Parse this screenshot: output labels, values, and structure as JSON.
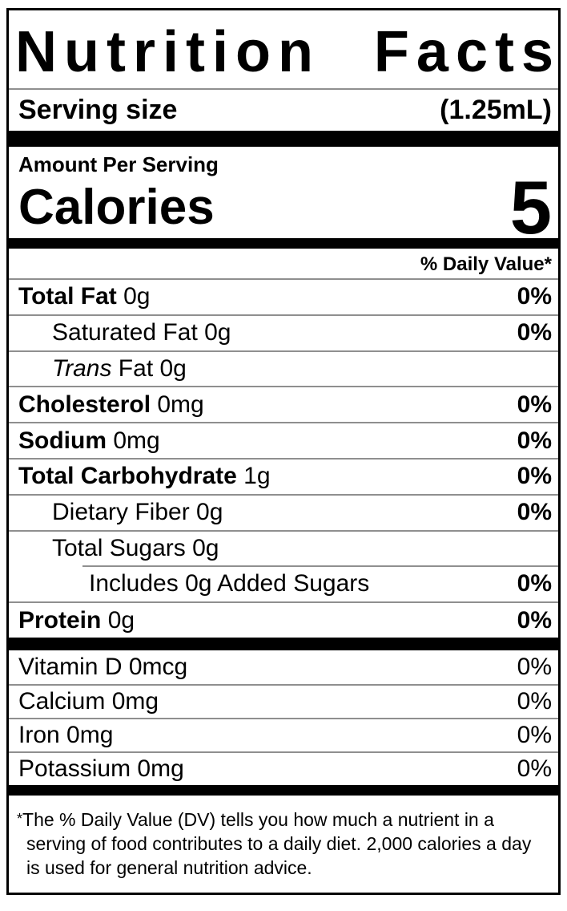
{
  "label": {
    "title": "Nutrition Facts"
  },
  "serving": {
    "label": "Serving size",
    "value": "(1.25mL)"
  },
  "calories": {
    "amount_label": "Amount Per Serving",
    "label": "Calories",
    "value": "5"
  },
  "daily_value_header": "% Daily Value*",
  "nutrients": [
    {
      "bold": "Total Fat",
      "text": " 0g",
      "dv": "0%",
      "indent": 0,
      "rule": "full"
    },
    {
      "text": "Saturated Fat 0g",
      "dv": "0%",
      "indent": 1,
      "rule": "full"
    },
    {
      "italic": "Trans",
      "text": " Fat 0g",
      "dv": "",
      "indent": 1,
      "rule": "full"
    },
    {
      "bold": "Cholesterol",
      "text": " 0mg",
      "dv": "0%",
      "indent": 0,
      "rule": "full"
    },
    {
      "bold": "Sodium",
      "text": " 0mg",
      "dv": "0%",
      "indent": 0,
      "rule": "full"
    },
    {
      "bold": "Total Carbohydrate",
      "text": " 1g",
      "dv": "0%",
      "indent": 0,
      "rule": "full"
    },
    {
      "text": "Dietary Fiber 0g",
      "dv": "0%",
      "indent": 1,
      "rule": "full"
    },
    {
      "text": "Total Sugars 0g",
      "dv": "",
      "indent": 1,
      "rule": "full"
    },
    {
      "text": "Includes 0g Added Sugars",
      "dv": "0%",
      "indent": 2,
      "rule": "partial"
    },
    {
      "bold": "Protein",
      "text": " 0g",
      "dv": "0%",
      "indent": 0,
      "rule": "full"
    }
  ],
  "vitamins": [
    {
      "text": "Vitamin D 0mcg",
      "dv": "0%"
    },
    {
      "text": "Calcium 0mg",
      "dv": "0%"
    },
    {
      "text": "Iron 0mg",
      "dv": "0%"
    },
    {
      "text": "Potassium 0mg",
      "dv": "0%"
    }
  ],
  "footnote": {
    "asterisk": "*",
    "text": "The % Daily Value (DV) tells you how much a nutrient in a serving of food contributes to a daily diet. 2,000 calories a day is used for general nutrition advice."
  },
  "colors": {
    "text": "#000000",
    "background": "#ffffff",
    "rule": "#8f8f8f",
    "bar": "#000000"
  }
}
